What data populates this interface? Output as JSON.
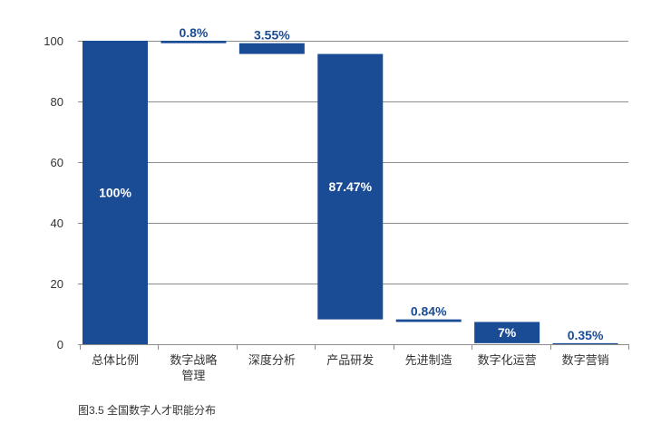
{
  "chart_data": {
    "type": "bar",
    "waterfall": true,
    "title": "图3.5 全国数字人才职能分布",
    "categories": [
      "总体比例",
      "数字战略\n管理",
      "深度分析",
      "产品研发",
      "先进制造",
      "数字化运营",
      "数字营销"
    ],
    "values": [
      100,
      0.8,
      3.55,
      87.47,
      0.84,
      7,
      0.35
    ],
    "data_labels": [
      "100%",
      "0.8%",
      "3.55%",
      "87.47%",
      "0.84%",
      "7%",
      "0.35%"
    ],
    "ylim": [
      0,
      100
    ],
    "yticks": [
      0,
      20,
      40,
      60,
      80,
      100
    ],
    "grid": true
  },
  "colors": {
    "bar": "#1a4c96",
    "label_outside": "#1a4c96",
    "label_inside": "#ffffff",
    "grid": "#8c8c8c",
    "axis_text": "#333333"
  }
}
